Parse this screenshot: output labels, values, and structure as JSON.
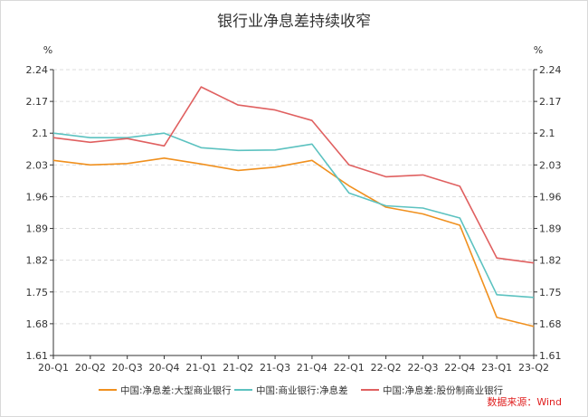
{
  "chart_data": {
    "type": "line",
    "title": "银行业净息差持续收窄",
    "ylabel_left": "%",
    "ylabel_right": "%",
    "ylim": [
      1.61,
      2.24
    ],
    "yticks": [
      "1.61",
      "1.68",
      "1.75",
      "1.82",
      "1.89",
      "1.96",
      "2.03",
      "2.1",
      "2.17",
      "2.24"
    ],
    "categories": [
      "20-Q1",
      "20-Q2",
      "20-Q3",
      "20-Q4",
      "21-Q1",
      "21-Q2",
      "21-Q3",
      "21-Q4",
      "22-Q1",
      "22-Q2",
      "22-Q3",
      "22-Q4",
      "23-Q1",
      "23-Q2"
    ],
    "grid": "horizontal-dashed",
    "legend_position": "bottom",
    "series": [
      {
        "name": "中国:净息差:大型商业银行",
        "color": "#f0901e",
        "values": [
          2.04,
          2.03,
          2.033,
          2.045,
          2.032,
          2.018,
          2.025,
          2.04,
          1.984,
          1.937,
          1.922,
          1.897,
          1.694,
          1.674
        ]
      },
      {
        "name": "中国:商业银行:净息差",
        "color": "#5cc2c0",
        "values": [
          2.1,
          2.09,
          2.09,
          2.1,
          2.068,
          2.062,
          2.063,
          2.076,
          1.968,
          1.94,
          1.935,
          1.913,
          1.744,
          1.738
        ]
      },
      {
        "name": "中国:净息差:股份制商业银行",
        "color": "#e06060",
        "values": [
          2.09,
          2.08,
          2.088,
          2.072,
          2.202,
          2.162,
          2.151,
          2.128,
          2.03,
          2.004,
          2.008,
          1.983,
          1.825,
          1.814
        ]
      }
    ],
    "source": "数据来源：Wind"
  }
}
